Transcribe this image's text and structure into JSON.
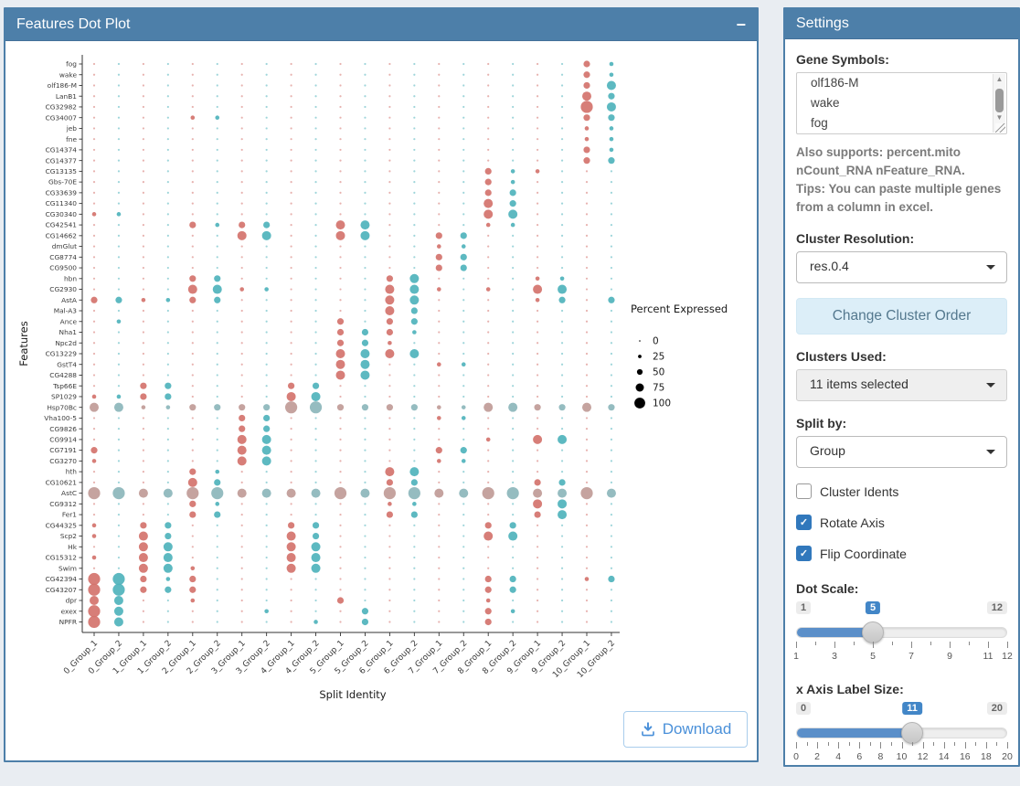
{
  "dotplot_panel": {
    "title": "Features Dot Plot",
    "collapse_label": "−"
  },
  "download": {
    "label": "Download"
  },
  "chart_data": {
    "type": "scatter",
    "subtype": "split-dot-plot",
    "xlabel": "Split Identity",
    "ylabel": "Features",
    "x_categories": [
      "0_Group_1",
      "0_Group_2",
      "1_Group_1",
      "1_Group_2",
      "2_Group_1",
      "2_Group_2",
      "3_Group_1",
      "3_Group_2",
      "4_Group_1",
      "4_Group_2",
      "5_Group_1",
      "5_Group_2",
      "6_Group_1",
      "6_Group_2",
      "7_Group_1",
      "7_Group_2",
      "8_Group_1",
      "8_Group_2",
      "9_Group_1",
      "9_Group_2",
      "10_Group_1",
      "10_Group_2"
    ],
    "y_categories": [
      "fog",
      "wake",
      "olf186-M",
      "LanB1",
      "CG32982",
      "CG34007",
      "jeb",
      "fne",
      "CG14374",
      "CG14377",
      "CG13135",
      "Gbs-70E",
      "CG33639",
      "CG11340",
      "CG30340",
      "CG42541",
      "CG14662",
      "dmGlut",
      "CG8774",
      "CG9500",
      "hbn",
      "CG2930",
      "AstA",
      "Mal-A3",
      "Ance",
      "Nha1",
      "Npc2d",
      "CG13229",
      "GstT4",
      "CG4288",
      "Tsp66E",
      "SP1029",
      "Hsp70Bc",
      "Vha100-5",
      "CG9826",
      "CG9914",
      "CG7191",
      "CG3270",
      "hth",
      "CG10621",
      "AstC",
      "CG9312",
      "Fer1",
      "CG44325",
      "Scp2",
      "Hk",
      "CG15312",
      "Swim",
      "CG42394",
      "CG43207",
      "dpr",
      "exex",
      "NPFR"
    ],
    "size_matrix": [
      "0000000000000000000021",
      "0000000000000000000021",
      "0000000000000000000023",
      "0000000000000000000032",
      "0000000000000000000043",
      "0000110000000000000022",
      "0000000000000000000011",
      "0000000000000000000011",
      "0000000000000000000021",
      "0000000000000000000022",
      "0000000000000000211000",
      "0000000000000000210000",
      "0000000000000000220000",
      "0000000000000000320000",
      "1100000000000000330000",
      "0000212200330000110000",
      "0000003300330022000000",
      "0000000000000011000000",
      "0000000000000022000000",
      "0000000000000022000000",
      "0000220000002300001100",
      "0000331100003310103300",
      "2211220000003300001202",
      "0000000000003200000000",
      "0100000000202200000000",
      "0000000000222100000000",
      "0000000000221000000000",
      "0000000000333300000000",
      "0000000000330011000000",
      "0000000000330000000000",
      "0022000022000000000000",
      "1122000033000000000000",
      "3311222244222211332232",
      "0000002200000011000000",
      "0000002200000000000000",
      "0000003300000000103300",
      "2000003300000022000000",
      "1000003300000011000000",
      "0000210000003300000000",
      "0000320000002200002200",
      "4433443333434433443343",
      "0000210000001100003300",
      "0000220000002200002300",
      "1022000022000000220000",
      "1032000032000000330000",
      "0033000033000000000000",
      "1033000033000000000000",
      "0033100033000000000000",
      "4421200000000000220012",
      "4422200000000000220000",
      "3300100000200000100000",
      "4300000100020000210000",
      "4300000001020000200000"
    ],
    "muted_rows": [
      "Hsp70Bc",
      "AstC"
    ],
    "colors": {
      "group1": "#d4736d",
      "group2": "#4fb3bc",
      "muted_group1": "#c09b97",
      "muted_group2": "#8cb6bb",
      "legend_dot": "#000000"
    },
    "legend": {
      "title": "Percent Expressed",
      "sizes": [
        "0",
        "25",
        "50",
        "75",
        "100"
      ]
    }
  },
  "settings": {
    "title": "Settings",
    "gene_symbols": {
      "label": "Gene Symbols:",
      "values": [
        "olf186-M",
        "wake",
        "fog"
      ]
    },
    "help_line1": "Also supports: percent.mito nCount_RNA nFeature_RNA.",
    "help_line2": "Tips: You can paste multiple genes from a column in excel.",
    "cluster_resolution": {
      "label": "Cluster Resolution:",
      "value": "res.0.4"
    },
    "change_cluster_order_label": "Change Cluster Order",
    "clusters_used": {
      "label": "Clusters Used:",
      "value": "11 items selected"
    },
    "split_by": {
      "label": "Split by:",
      "value": "Group"
    },
    "checkboxes": [
      {
        "label": "Cluster Idents",
        "checked": false
      },
      {
        "label": "Rotate Axis",
        "checked": true
      },
      {
        "label": "Flip Coordinate",
        "checked": true
      }
    ],
    "dot_scale": {
      "label": "Dot Scale:",
      "min": 1,
      "max": 12,
      "value": 5,
      "ticks": [
        1,
        3,
        5,
        7,
        9,
        11,
        12
      ]
    },
    "x_axis_label_size": {
      "label": "x Axis Label Size:",
      "min": 0,
      "max": 20,
      "value": 11,
      "ticks": [
        0,
        2,
        4,
        6,
        8,
        10,
        12,
        14,
        16,
        18,
        20
      ]
    }
  }
}
